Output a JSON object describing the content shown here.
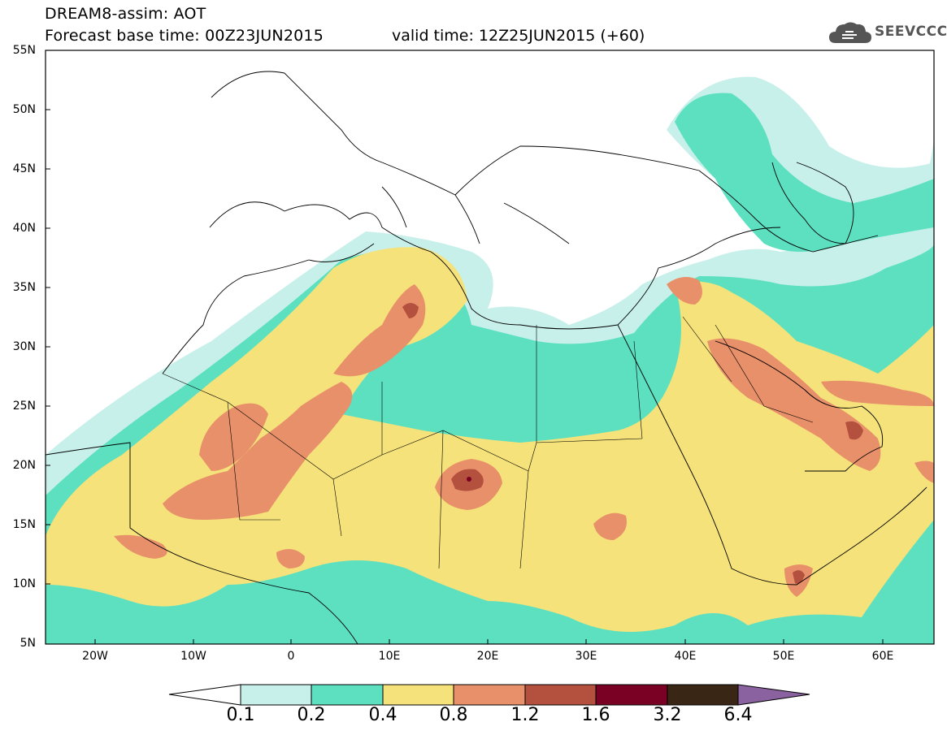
{
  "header": {
    "line1": "DREAM8-assim: AOT",
    "base_time": "Forecast base time: 00Z23JUN2015",
    "valid_time": "valid time: 12Z25JUN2015 (+60)",
    "logo_text": "SEEVCCC"
  },
  "map": {
    "lon_range": [
      -25,
      65
    ],
    "lat_range": [
      5,
      55
    ],
    "lat_labels": [
      "55N",
      "50N",
      "45N",
      "40N",
      "35N",
      "30N",
      "25N",
      "20N",
      "15N",
      "10N",
      "5N"
    ],
    "lon_labels": [
      "20W",
      "10W",
      "0",
      "10E",
      "20E",
      "30E",
      "40E",
      "50E",
      "60E"
    ],
    "field": "AOT"
  },
  "colorbar": {
    "labels": [
      "0.1",
      "0.2",
      "0.4",
      "0.8",
      "1.2",
      "1.6",
      "3.2",
      "6.4"
    ],
    "colors": [
      "#c8f0ea",
      "#5ce0c0",
      "#f5e27a",
      "#e8906a",
      "#b4503e",
      "#7a0024",
      "#3a2614",
      "#8a62a0"
    ]
  }
}
